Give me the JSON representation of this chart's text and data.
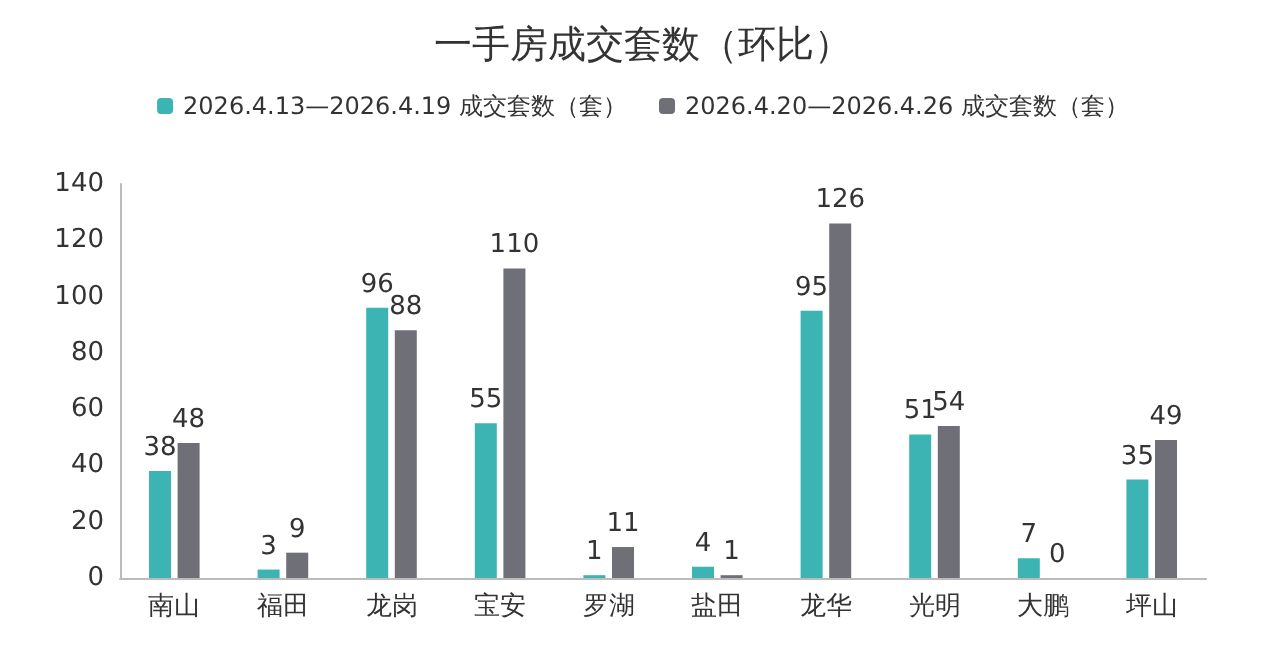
{
  "chart_data": {
    "type": "bar",
    "title": "一手房成交套数（环比）",
    "categories": [
      "南山",
      "福田",
      "龙岗",
      "宝安",
      "罗湖",
      "盐田",
      "龙华",
      "光明",
      "大鹏",
      "坪山"
    ],
    "series": [
      {
        "name": "2026.4.13—2026.4.19 成交套数（套）",
        "color": "#3cb4b4",
        "values": [
          38,
          3,
          96,
          55,
          1,
          4,
          95,
          51,
          7,
          35
        ]
      },
      {
        "name": "2026.4.20—2026.4.26 成交套数（套）",
        "color": "#6f6f78",
        "values": [
          48,
          9,
          88,
          110,
          11,
          1,
          126,
          54,
          0,
          49
        ]
      }
    ],
    "ylim": [
      0,
      140
    ],
    "yticks": [
      0,
      20,
      40,
      60,
      80,
      100,
      120,
      140
    ],
    "grid": false,
    "legend": "top",
    "data_labels": true
  }
}
